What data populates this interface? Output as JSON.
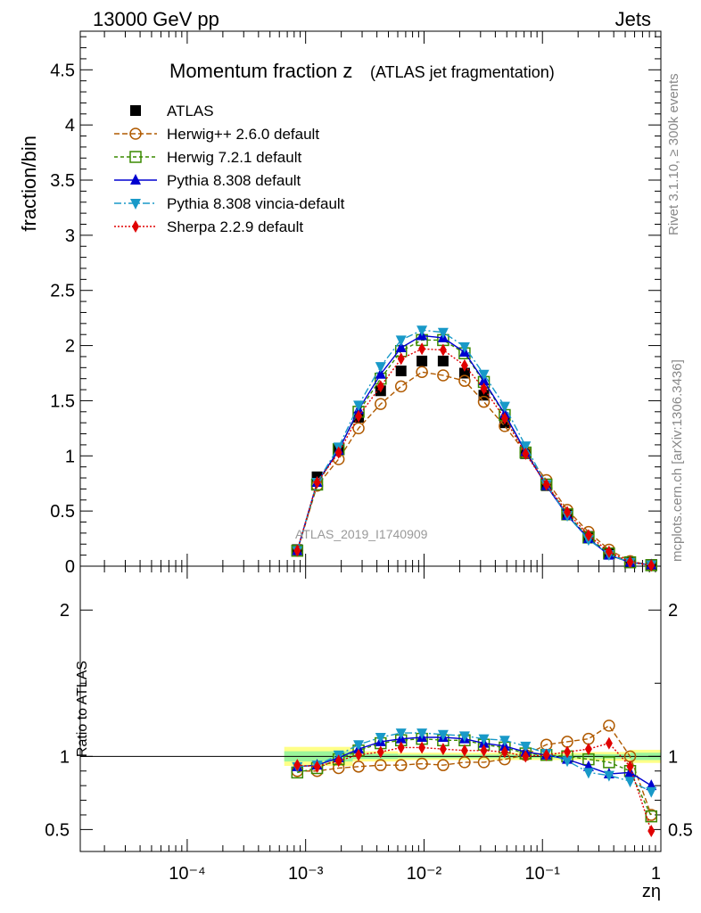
{
  "header": {
    "left": "13000 GeV pp",
    "right": "Jets"
  },
  "side_labels": {
    "rivet": "Rivet 3.1.10, ≥ 300k events",
    "mcplots": "mcplots.cern.ch [arXiv:1306.3436]"
  },
  "analysis_id": "ATLAS_2019_I1740909",
  "chart_data": [
    {
      "type": "line",
      "title_main": "Momentum fraction z",
      "title_sub": "(ATLAS jet fragmentation)",
      "ylabel": "fraction/bin",
      "xscale": "log",
      "xlim": [
        1.25e-05,
        1
      ],
      "ylim": [
        0,
        4.85
      ],
      "yticks": [
        "0",
        "0.5",
        "1",
        "1.5",
        "2",
        "2.5",
        "3",
        "3.5",
        "4",
        "4.5"
      ],
      "legend_position": "top-left",
      "x": [
        0.00085,
        0.00125,
        0.0019,
        0.0028,
        0.0043,
        0.0064,
        0.0096,
        0.0145,
        0.022,
        0.032,
        0.048,
        0.072,
        0.108,
        0.162,
        0.245,
        0.365,
        0.55,
        0.83
      ],
      "series": [
        {
          "name": "ATLAS",
          "color": "#000000",
          "dash": "",
          "marker": "square",
          "line": false,
          "values": [
            0.15,
            0.81,
            1.06,
            1.35,
            1.59,
            1.77,
            1.86,
            1.86,
            1.75,
            1.55,
            1.3,
            1.02,
            0.73,
            0.47,
            0.27,
            0.12,
            0.04,
            0.015
          ]
        },
        {
          "name": "Herwig++ 2.6.0 default",
          "color": "#b05a00",
          "dash": "6,3",
          "marker": "circle-open",
          "line": true,
          "values": [
            0.14,
            0.73,
            0.97,
            1.25,
            1.47,
            1.63,
            1.76,
            1.73,
            1.68,
            1.49,
            1.27,
            1.03,
            0.78,
            0.51,
            0.31,
            0.15,
            0.045,
            0.009
          ]
        },
        {
          "name": "Herwig 7.2.1 default",
          "color": "#3a8a00",
          "dash": "4,3",
          "marker": "square-open",
          "line": true,
          "values": [
            0.14,
            0.74,
            1.06,
            1.4,
            1.7,
            1.95,
            2.05,
            2.05,
            1.93,
            1.67,
            1.37,
            1.03,
            0.74,
            0.47,
            0.26,
            0.115,
            0.035,
            0.009
          ]
        },
        {
          "name": "Pythia 8.308 default",
          "color": "#0000d0",
          "dash": "",
          "marker": "triangle-up",
          "line": true,
          "values": [
            0.14,
            0.76,
            1.05,
            1.42,
            1.74,
            1.98,
            2.09,
            2.07,
            1.94,
            1.68,
            1.38,
            1.04,
            0.73,
            0.46,
            0.25,
            0.1,
            0.035,
            0.012
          ]
        },
        {
          "name": "Pythia 8.308 vincia-default",
          "color": "#1899c8",
          "dash": "8,3,2,3",
          "marker": "triangle-down",
          "line": true,
          "values": [
            0.14,
            0.76,
            1.08,
            1.46,
            1.81,
            2.05,
            2.14,
            2.12,
            1.99,
            1.74,
            1.45,
            1.09,
            0.74,
            0.46,
            0.24,
            0.105,
            0.033,
            0.011
          ]
        },
        {
          "name": "Sherpa 2.2.9 default",
          "color": "#e00000",
          "dash": "2,2",
          "marker": "diamond",
          "line": true,
          "values": [
            0.14,
            0.76,
            1.03,
            1.36,
            1.63,
            1.88,
            1.97,
            1.96,
            1.82,
            1.61,
            1.34,
            1.02,
            0.74,
            0.49,
            0.28,
            0.13,
            0.037,
            0.007
          ]
        }
      ]
    },
    {
      "type": "line",
      "ylabel": "Ratio to ATLAS",
      "xlabel": "zη",
      "xscale": "log",
      "xlim": [
        1.25e-05,
        1
      ],
      "ylim": [
        0.35,
        2.3
      ],
      "yticks": [
        "0.5",
        "1",
        "2"
      ],
      "xticks": [
        "10⁻⁴",
        "10⁻³",
        "10⁻²",
        "10⁻¹",
        "1"
      ],
      "reference_line": 1,
      "x": [
        0.00085,
        0.00125,
        0.0019,
        0.0028,
        0.0043,
        0.0064,
        0.0096,
        0.0145,
        0.022,
        0.032,
        0.048,
        0.072,
        0.108,
        0.162,
        0.245,
        0.365,
        0.55,
        0.83
      ],
      "uncertainty_bands": [
        {
          "name": "total",
          "color": "#ffff88",
          "x_edges": [
            0.00066,
            0.0025,
            0.006,
            0.25,
            0.55,
            1.0
          ],
          "half_width": [
            0.065,
            0.035,
            0.025,
            0.03,
            0.045
          ]
        },
        {
          "name": "stat",
          "color": "#9bf59b",
          "x_edges": [
            0.00066,
            0.0025,
            0.006,
            0.25,
            0.55,
            1.0
          ],
          "half_width": [
            0.035,
            0.018,
            0.012,
            0.015,
            0.025
          ]
        }
      ],
      "series": [
        {
          "name": "Herwig++ 2.6.0 default",
          "color": "#b05a00",
          "dash": "6,3",
          "marker": "circle-open",
          "values": [
            0.9,
            0.9,
            0.92,
            0.93,
            0.94,
            0.94,
            0.95,
            0.94,
            0.96,
            0.96,
            0.98,
            1.01,
            1.08,
            1.1,
            1.12,
            1.21,
            1.0,
            0.6
          ]
        },
        {
          "name": "Herwig 7.2.1 default",
          "color": "#3a8a00",
          "dash": "4,3",
          "marker": "square-open",
          "values": [
            0.89,
            0.92,
            0.98,
            1.04,
            1.09,
            1.11,
            1.12,
            1.11,
            1.11,
            1.08,
            1.06,
            1.02,
            1.01,
            1.0,
            0.98,
            0.96,
            0.9,
            0.59
          ]
        },
        {
          "name": "Pythia 8.308 default",
          "color": "#0000d0",
          "dash": "",
          "marker": "triangle-up",
          "values": [
            0.93,
            0.94,
            0.99,
            1.05,
            1.1,
            1.12,
            1.13,
            1.13,
            1.12,
            1.09,
            1.07,
            1.03,
            1.01,
            0.98,
            0.93,
            0.88,
            0.89,
            0.8
          ]
        },
        {
          "name": "Pythia 8.308 vincia-default",
          "color": "#1899c8",
          "dash": "8,3,2,3",
          "marker": "triangle-down",
          "values": [
            0.93,
            0.94,
            1.01,
            1.08,
            1.13,
            1.16,
            1.16,
            1.15,
            1.14,
            1.12,
            1.11,
            1.07,
            1.02,
            0.97,
            0.89,
            0.87,
            0.83,
            0.76
          ]
        },
        {
          "name": "Sherpa 2.2.9 default",
          "color": "#e00000",
          "dash": "2,2",
          "marker": "diamond",
          "values": [
            0.94,
            0.93,
            0.97,
            1.01,
            1.03,
            1.06,
            1.06,
            1.05,
            1.04,
            1.04,
            1.03,
            1.0,
            1.01,
            1.03,
            1.05,
            1.09,
            0.93,
            0.49
          ]
        }
      ]
    }
  ]
}
